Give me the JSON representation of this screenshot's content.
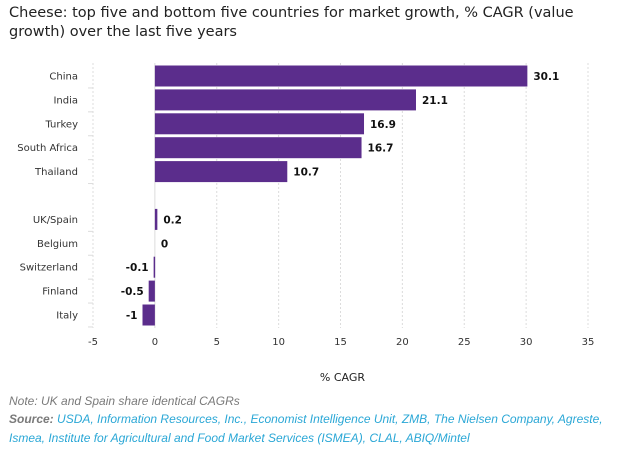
{
  "colors": {
    "bar": "#5b2d8c",
    "grid": "#dcdcdc",
    "source_link": "#2aa7d6",
    "note": "#7a7a7a"
  },
  "chart_data": {
    "type": "bar",
    "orientation": "horizontal",
    "title": "Cheese: top five and bottom five countries for market growth, % CAGR (value growth) over the last five years",
    "xlabel": "% CAGR",
    "ylabel": "",
    "xlim": [
      -5,
      35
    ],
    "xticks": [
      -5,
      0,
      5,
      10,
      15,
      20,
      25,
      30,
      35
    ],
    "grid": true,
    "categories": [
      "China",
      "India",
      "Turkey",
      "South Africa",
      "Thailand",
      "UK/Spain",
      "Belgium",
      "Switzerland",
      "Finland",
      "Italy"
    ],
    "values": [
      30.1,
      21.1,
      16.9,
      16.7,
      10.7,
      0.2,
      0,
      -0.1,
      -0.5,
      -1
    ],
    "value_labels": [
      "30.1",
      "21.1",
      "16.9",
      "16.7",
      "10.7",
      "0.2",
      "0",
      "-0.1",
      "-0.5",
      "-1"
    ],
    "group_gap_after_index": 4
  },
  "footer": {
    "note": "Note: UK and Spain share identical CAGRs",
    "source_label": "Source:",
    "source_text": "USDA, Information Resources, Inc., Economist Intelligence Unit, ZMB, The Nielsen Company, Agreste, Ismea, Institute for Agricultural and Food Market Services (ISMEA), CLAL, ABIQ/Mintel"
  }
}
